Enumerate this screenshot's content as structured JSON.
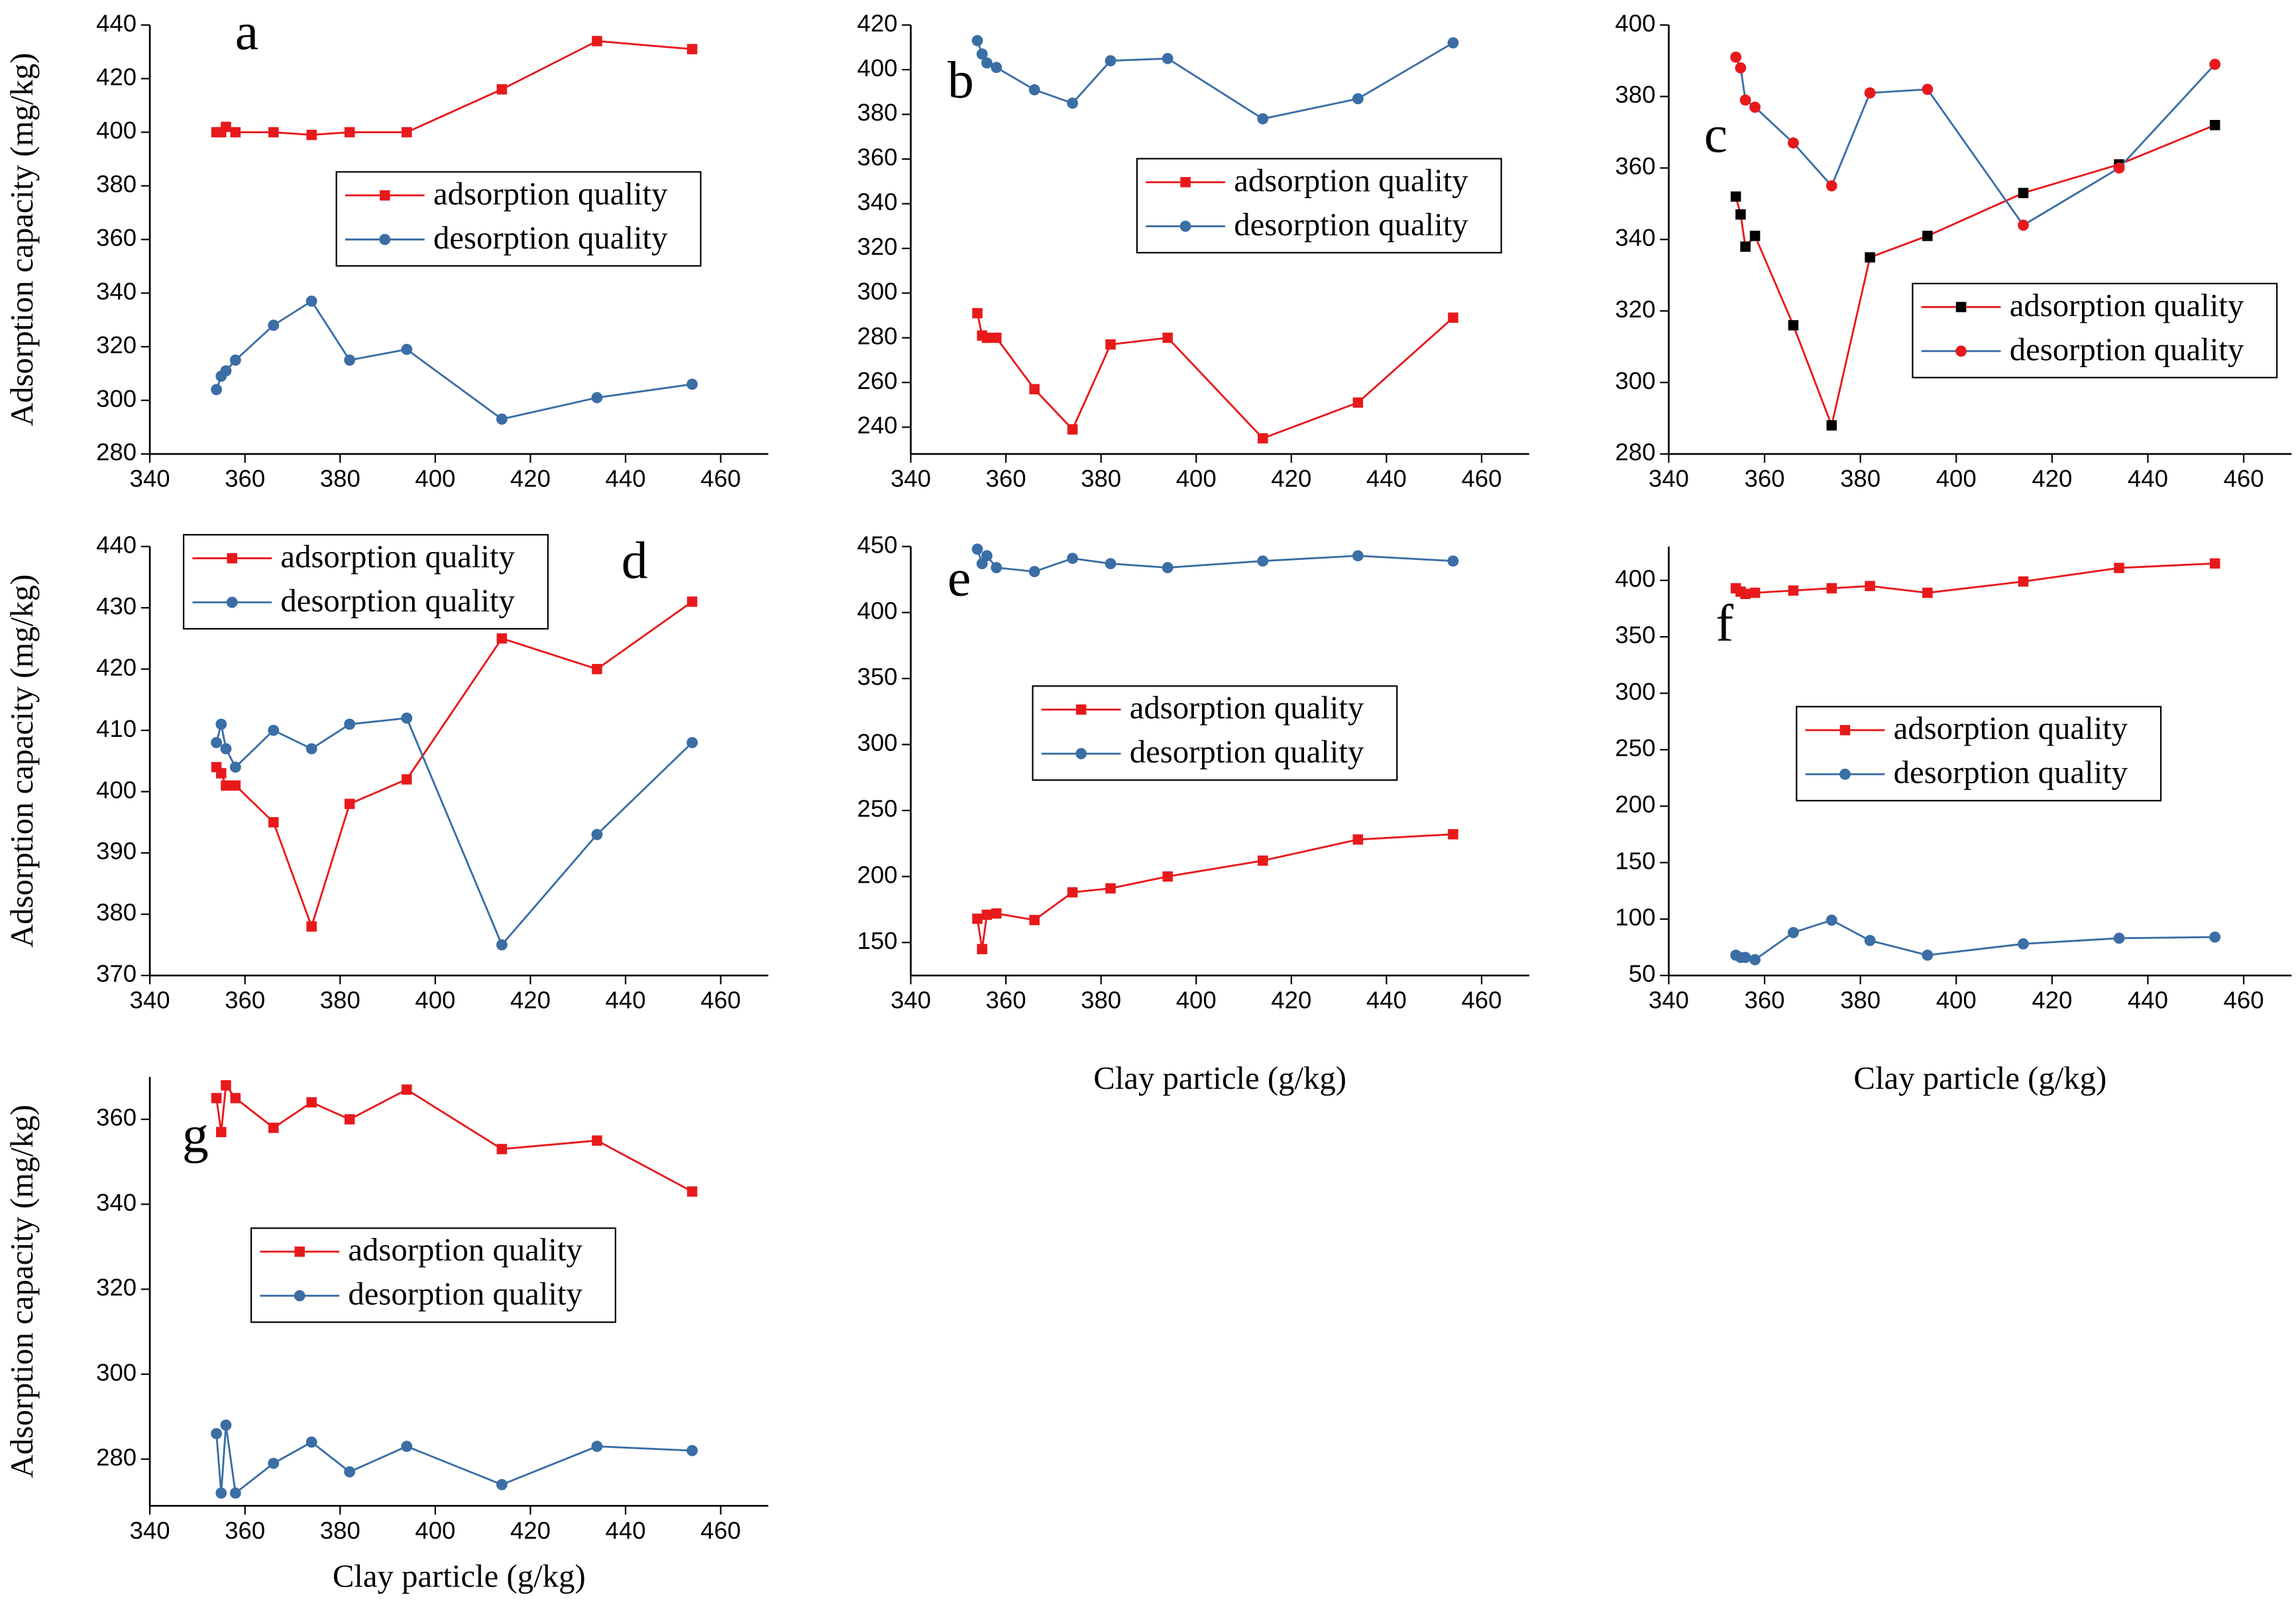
{
  "chart_data": [
    {
      "type": "line",
      "label": "a",
      "y_label": "Adsorption capacity (mg/kg)",
      "x": [
        354,
        355,
        356,
        358,
        366,
        374,
        382,
        394,
        414,
        434,
        454
      ],
      "xlim": [
        340,
        470
      ],
      "xticks": [
        340,
        360,
        380,
        400,
        420,
        440,
        460
      ],
      "ylim": [
        280,
        440
      ],
      "yticks": [
        280,
        300,
        320,
        340,
        360,
        380,
        400,
        420,
        440
      ],
      "series": [
        {
          "name": "adsorption quality",
          "color": "#e8191b",
          "marker": "square",
          "marker_color": "#e8191b",
          "values": [
            400,
            400,
            402,
            400,
            400,
            399,
            400,
            400,
            416,
            434,
            431
          ]
        },
        {
          "name": "desorption quality",
          "color": "#3a6ea5",
          "marker": "circle",
          "marker_color": "#3a6ea5",
          "values": [
            304,
            309,
            311,
            315,
            328,
            337,
            315,
            319,
            293,
            301,
            306
          ]
        }
      ]
    },
    {
      "type": "line",
      "label": "b",
      "x": [
        354,
        355,
        356,
        358,
        366,
        374,
        382,
        394,
        414,
        434,
        454
      ],
      "xlim": [
        340,
        470
      ],
      "xticks": [
        340,
        360,
        380,
        400,
        420,
        440,
        460
      ],
      "ylim": [
        228,
        420
      ],
      "yticks": [
        240,
        260,
        280,
        300,
        320,
        340,
        360,
        380,
        400,
        420
      ],
      "series": [
        {
          "name": "adsorption quality",
          "color": "#e8191b",
          "marker": "square",
          "marker_color": "#e8191b",
          "values": [
            291,
            281,
            280,
            280,
            257,
            239,
            277,
            280,
            235,
            251,
            289
          ]
        },
        {
          "name": "desorption quality",
          "color": "#3a6ea5",
          "marker": "circle",
          "marker_color": "#3a6ea5",
          "values": [
            413,
            407,
            403,
            401,
            391,
            385,
            404,
            405,
            378,
            387,
            412
          ]
        }
      ]
    },
    {
      "type": "line",
      "label": "c",
      "x": [
        354,
        355,
        356,
        358,
        366,
        374,
        382,
        394,
        414,
        434,
        454
      ],
      "xlim": [
        340,
        470
      ],
      "xticks": [
        340,
        360,
        380,
        400,
        420,
        440,
        460
      ],
      "ylim": [
        280,
        400
      ],
      "yticks": [
        280,
        300,
        320,
        340,
        360,
        380,
        400
      ],
      "series": [
        {
          "name": "adsorption quality",
          "color": "#e8191b",
          "marker": "square",
          "marker_color": "#000000",
          "values": [
            352,
            347,
            338,
            341,
            316,
            288,
            335,
            341,
            353,
            361,
            372
          ]
        },
        {
          "name": "desorption quality",
          "color": "#3a6ea5",
          "marker": "circle",
          "marker_color": "#e8191b",
          "values": [
            391,
            388,
            379,
            377,
            367,
            355,
            381,
            382,
            344,
            360,
            389
          ]
        }
      ]
    },
    {
      "type": "line",
      "label": "d",
      "y_label": "Adsorption capacity (mg/kg)",
      "x": [
        354,
        355,
        356,
        358,
        366,
        374,
        382,
        394,
        414,
        434,
        454
      ],
      "xlim": [
        340,
        470
      ],
      "xticks": [
        340,
        360,
        380,
        400,
        420,
        440,
        460
      ],
      "ylim": [
        370,
        440
      ],
      "yticks": [
        370,
        380,
        390,
        400,
        410,
        420,
        430,
        440
      ],
      "series": [
        {
          "name": "adsorption quality",
          "color": "#e8191b",
          "marker": "square",
          "marker_color": "#e8191b",
          "values": [
            404,
            403,
            401,
            401,
            395,
            378,
            398,
            402,
            425,
            420,
            431
          ]
        },
        {
          "name": "desorption quality",
          "color": "#3a6ea5",
          "marker": "circle",
          "marker_color": "#3a6ea5",
          "values": [
            408,
            411,
            407,
            404,
            410,
            407,
            411,
            412,
            375,
            393,
            408
          ]
        }
      ]
    },
    {
      "type": "line",
      "label": "e",
      "x_label": "Clay particle (g/kg)",
      "x": [
        354,
        355,
        356,
        358,
        366,
        374,
        382,
        394,
        414,
        434,
        454
      ],
      "xlim": [
        340,
        470
      ],
      "xticks": [
        340,
        360,
        380,
        400,
        420,
        440,
        460
      ],
      "ylim": [
        125,
        450
      ],
      "yticks": [
        150,
        200,
        250,
        300,
        350,
        400,
        450
      ],
      "series": [
        {
          "name": "adsorption quality",
          "color": "#e8191b",
          "marker": "square",
          "marker_color": "#e8191b",
          "values": [
            168,
            145,
            171,
            172,
            167,
            188,
            191,
            200,
            212,
            228,
            232
          ]
        },
        {
          "name": "desorption quality",
          "color": "#3a6ea5",
          "marker": "circle",
          "marker_color": "#3a6ea5",
          "values": [
            448,
            437,
            443,
            434,
            431,
            441,
            437,
            434,
            439,
            443,
            439
          ]
        }
      ]
    },
    {
      "type": "line",
      "label": "f",
      "x_label": "Clay particle (g/kg)",
      "x": [
        354,
        355,
        356,
        358,
        366,
        374,
        382,
        394,
        414,
        434,
        454
      ],
      "xlim": [
        340,
        470
      ],
      "xticks": [
        340,
        360,
        380,
        400,
        420,
        440,
        460
      ],
      "ylim": [
        50,
        430
      ],
      "yticks": [
        50,
        100,
        150,
        200,
        250,
        300,
        350,
        400
      ],
      "series": [
        {
          "name": "adsorption quality",
          "color": "#e8191b",
          "marker": "square",
          "marker_color": "#e8191b",
          "values": [
            393,
            390,
            388,
            389,
            391,
            393,
            395,
            389,
            399,
            411,
            415
          ]
        },
        {
          "name": "desorption quality",
          "color": "#3a6ea5",
          "marker": "circle",
          "marker_color": "#3a6ea5",
          "values": [
            68,
            66,
            66,
            64,
            88,
            99,
            81,
            68,
            78,
            83,
            84
          ]
        }
      ]
    },
    {
      "type": "line",
      "label": "g",
      "y_label": "Adsorption capacity (mg/kg)",
      "x_label": "Clay particle (g/kg)",
      "x": [
        354,
        355,
        356,
        358,
        366,
        374,
        382,
        394,
        414,
        434,
        454
      ],
      "xlim": [
        340,
        470
      ],
      "xticks": [
        340,
        360,
        380,
        400,
        420,
        440,
        460
      ],
      "ylim": [
        269,
        370
      ],
      "yticks": [
        280,
        300,
        320,
        340,
        360
      ],
      "series": [
        {
          "name": "adsorption quality",
          "color": "#e8191b",
          "marker": "square",
          "marker_color": "#e8191b",
          "values": [
            365,
            357,
            368,
            365,
            358,
            364,
            360,
            367,
            353,
            355,
            343
          ]
        },
        {
          "name": "desorption quality",
          "color": "#3a6ea5",
          "marker": "circle",
          "marker_color": "#3a6ea5",
          "values": [
            286,
            272,
            288,
            272,
            279,
            284,
            277,
            283,
            274,
            283,
            282
          ]
        }
      ]
    }
  ]
}
